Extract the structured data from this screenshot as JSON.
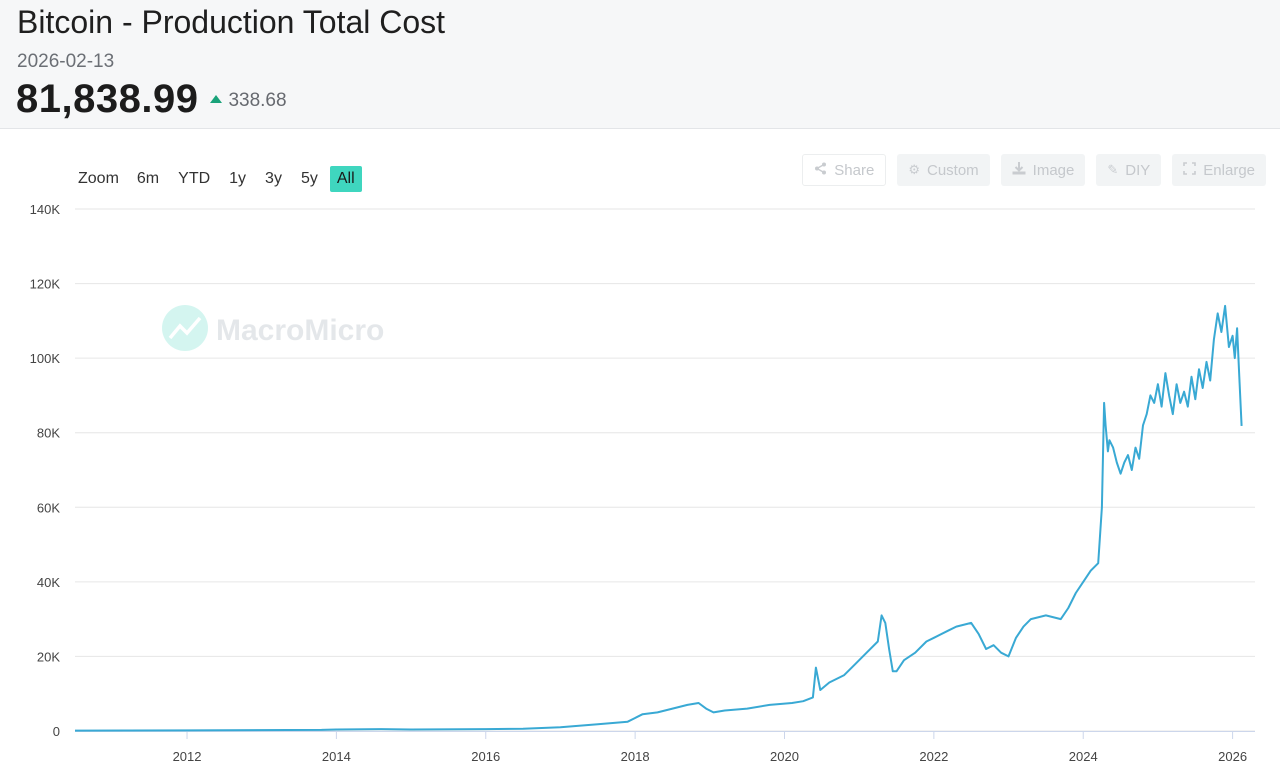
{
  "header": {
    "title": "Bitcoin - Production Total Cost",
    "date": "2026-02-13",
    "value": "81,838.99",
    "change": "338.68",
    "change_direction": "up",
    "up_color": "#1aa37a"
  },
  "zoom": {
    "label": "Zoom",
    "options": [
      "6m",
      "YTD",
      "1y",
      "3y",
      "5y",
      "All"
    ],
    "active": "All",
    "active_color": "#3fd6bf"
  },
  "tools": [
    {
      "label": "Share",
      "icon": "share-icon"
    },
    {
      "label": "Custom",
      "icon": "gear-icon"
    },
    {
      "label": "Image",
      "icon": "download-icon"
    },
    {
      "label": "DIY",
      "icon": "pencil-icon"
    },
    {
      "label": "Enlarge",
      "icon": "enlarge-icon"
    }
  ],
  "watermark": "MacroMicro",
  "chart_data": {
    "type": "line",
    "title": "Bitcoin - Production Total Cost",
    "xlabel": "",
    "ylabel": "",
    "x_range": [
      2010.5,
      2026.3
    ],
    "ylim": [
      0,
      140000
    ],
    "yticks": [
      0,
      20000,
      40000,
      60000,
      80000,
      100000,
      120000,
      140000
    ],
    "ytick_labels": [
      "0",
      "20K",
      "40K",
      "60K",
      "80K",
      "100K",
      "120K",
      "140K"
    ],
    "xticks": [
      2012,
      2014,
      2016,
      2018,
      2020,
      2022,
      2024,
      2026
    ],
    "xtick_labels": [
      "2012",
      "2014",
      "2016",
      "2018",
      "2020",
      "2022",
      "2024",
      "2026"
    ],
    "grid": true,
    "line_color": "#39a9d4",
    "series": [
      {
        "name": "Bitcoin - Production Total Cost",
        "x": [
          2010.5,
          2012.0,
          2013.8,
          2014.0,
          2014.6,
          2015.0,
          2016.0,
          2016.5,
          2017.0,
          2017.5,
          2017.9,
          2018.0,
          2018.1,
          2018.3,
          2018.5,
          2018.7,
          2018.85,
          2018.95,
          2019.05,
          2019.2,
          2019.5,
          2019.8,
          2020.1,
          2020.25,
          2020.38,
          2020.42,
          2020.48,
          2020.6,
          2020.8,
          2020.95,
          2021.1,
          2021.25,
          2021.3,
          2021.35,
          2021.4,
          2021.45,
          2021.5,
          2021.6,
          2021.75,
          2021.9,
          2022.0,
          2022.2,
          2022.3,
          2022.5,
          2022.6,
          2022.7,
          2022.8,
          2022.9,
          2023.0,
          2023.1,
          2023.2,
          2023.3,
          2023.5,
          2023.7,
          2023.8,
          2023.9,
          2024.0,
          2024.1,
          2024.2,
          2024.25,
          2024.28,
          2024.3,
          2024.33,
          2024.35,
          2024.4,
          2024.45,
          2024.5,
          2024.55,
          2024.6,
          2024.65,
          2024.7,
          2024.75,
          2024.8,
          2024.85,
          2024.9,
          2024.95,
          2025.0,
          2025.05,
          2025.1,
          2025.15,
          2025.2,
          2025.25,
          2025.3,
          2025.35,
          2025.4,
          2025.45,
          2025.5,
          2025.55,
          2025.6,
          2025.65,
          2025.7,
          2025.75,
          2025.8,
          2025.85,
          2025.9,
          2025.95,
          2026.0,
          2026.03,
          2026.06,
          2026.09,
          2026.12
        ],
        "y": [
          100,
          150,
          300,
          400,
          500,
          400,
          500,
          600,
          1000,
          1800,
          2500,
          3500,
          4500,
          5000,
          6000,
          7000,
          7500,
          6000,
          5000,
          5500,
          6000,
          7000,
          7500,
          8000,
          9000,
          17000,
          11000,
          13000,
          15000,
          18000,
          21000,
          24000,
          31000,
          29000,
          22000,
          16000,
          16000,
          19000,
          21000,
          24000,
          25000,
          27000,
          28000,
          29000,
          26000,
          22000,
          23000,
          21000,
          20000,
          25000,
          28000,
          30000,
          31000,
          30000,
          33000,
          37000,
          40000,
          43000,
          45000,
          60000,
          88000,
          82000,
          75000,
          78000,
          76000,
          72000,
          69000,
          72000,
          74000,
          70000,
          76000,
          73000,
          82000,
          85000,
          90000,
          88000,
          93000,
          87000,
          96000,
          90000,
          85000,
          93000,
          88000,
          91000,
          87000,
          95000,
          89000,
          97000,
          92000,
          99000,
          94000,
          105000,
          112000,
          107000,
          114000,
          103000,
          106000,
          100000,
          108000,
          95000,
          81839
        ]
      }
    ]
  }
}
